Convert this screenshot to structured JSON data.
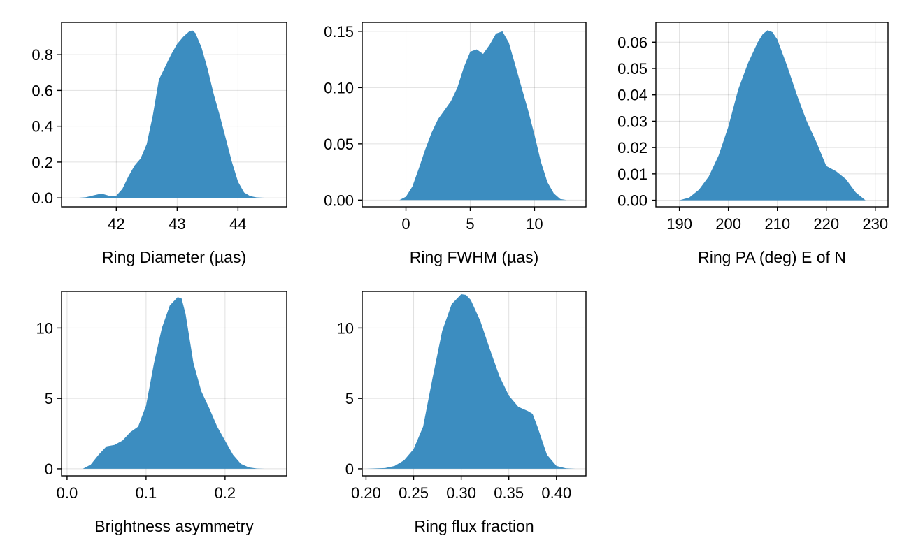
{
  "figure": {
    "fill_color": "#3C8DC0",
    "grid": true
  },
  "chart_data": [
    {
      "type": "area",
      "title": "",
      "xlabel": "Ring Diameter (µas)",
      "ylabel": "",
      "xlim": [
        41.1,
        44.8
      ],
      "ylim": [
        -0.05,
        0.98
      ],
      "xticks": [
        42,
        43,
        44
      ],
      "xtick_labels": [
        "42",
        "43",
        "44"
      ],
      "yticks": [
        0.0,
        0.2,
        0.4,
        0.6,
        0.8
      ],
      "ytick_labels": [
        "0.0",
        "0.2",
        "0.4",
        "0.6",
        "0.8"
      ],
      "x": [
        41.35,
        41.5,
        41.6,
        41.7,
        41.75,
        41.8,
        41.9,
        42.0,
        42.1,
        42.2,
        42.3,
        42.4,
        42.5,
        42.6,
        42.7,
        42.8,
        42.9,
        43.0,
        43.1,
        43.2,
        43.25,
        43.3,
        43.4,
        43.5,
        43.6,
        43.7,
        43.8,
        43.9,
        44.0,
        44.1,
        44.2,
        44.3,
        44.4,
        44.5
      ],
      "y": [
        0.0,
        0.004,
        0.012,
        0.02,
        0.022,
        0.02,
        0.01,
        0.012,
        0.05,
        0.12,
        0.18,
        0.22,
        0.3,
        0.46,
        0.66,
        0.73,
        0.8,
        0.86,
        0.9,
        0.93,
        0.935,
        0.92,
        0.84,
        0.72,
        0.58,
        0.46,
        0.33,
        0.2,
        0.09,
        0.03,
        0.01,
        0.003,
        0.001,
        0.0
      ]
    },
    {
      "type": "area",
      "title": "",
      "xlabel": "Ring FWHM (µas)",
      "ylabel": "",
      "xlim": [
        -3.4,
        14.0
      ],
      "ylim": [
        -0.006,
        0.158
      ],
      "xticks": [
        0,
        5,
        10
      ],
      "xtick_labels": [
        "0",
        "5",
        "10"
      ],
      "yticks": [
        0.0,
        0.05,
        0.1,
        0.15
      ],
      "ytick_labels": [
        "0.00",
        "0.05",
        "0.10",
        "0.15"
      ],
      "x": [
        -0.5,
        0.0,
        0.5,
        1.0,
        1.5,
        2.0,
        2.5,
        3.0,
        3.5,
        4.0,
        4.5,
        5.0,
        5.5,
        6.0,
        6.5,
        7.0,
        7.5,
        8.0,
        8.5,
        9.0,
        9.5,
        10.0,
        10.5,
        11.0,
        11.5,
        12.0,
        12.5
      ],
      "y": [
        0.0,
        0.003,
        0.012,
        0.028,
        0.045,
        0.06,
        0.072,
        0.08,
        0.088,
        0.1,
        0.118,
        0.132,
        0.134,
        0.13,
        0.138,
        0.148,
        0.15,
        0.14,
        0.12,
        0.1,
        0.08,
        0.058,
        0.034,
        0.016,
        0.006,
        0.001,
        0.0
      ]
    },
    {
      "type": "area",
      "title": "",
      "xlabel": "Ring PA (deg) E of N",
      "ylabel": "",
      "xlim": [
        185.2,
        232.6
      ],
      "ylim": [
        -0.0025,
        0.0675
      ],
      "xticks": [
        190,
        200,
        210,
        220,
        230
      ],
      "xtick_labels": [
        "190",
        "200",
        "210",
        "220",
        "230"
      ],
      "yticks": [
        0.0,
        0.01,
        0.02,
        0.03,
        0.04,
        0.05,
        0.06
      ],
      "ytick_labels": [
        "0.00",
        "0.01",
        "0.02",
        "0.03",
        "0.04",
        "0.05",
        "0.06"
      ],
      "x": [
        190,
        192,
        194,
        196,
        198,
        200,
        202,
        204,
        206,
        207,
        208,
        209,
        210,
        212,
        214,
        216,
        218,
        220,
        222,
        224,
        226,
        228
      ],
      "y": [
        0.0,
        0.001,
        0.004,
        0.009,
        0.017,
        0.028,
        0.042,
        0.052,
        0.06,
        0.063,
        0.0645,
        0.0638,
        0.061,
        0.051,
        0.04,
        0.03,
        0.022,
        0.013,
        0.011,
        0.008,
        0.003,
        0.0
      ]
    },
    {
      "type": "area",
      "title": "",
      "xlabel": "Brightness asymmetry",
      "ylabel": "",
      "xlim": [
        -0.007,
        0.278
      ],
      "ylim": [
        -0.5,
        12.6
      ],
      "xticks": [
        0.0,
        0.1,
        0.2
      ],
      "xtick_labels": [
        "0.0",
        "0.1",
        "0.2"
      ],
      "yticks": [
        0,
        5,
        10
      ],
      "ytick_labels": [
        "0",
        "5",
        "10"
      ],
      "x": [
        0.02,
        0.03,
        0.04,
        0.05,
        0.06,
        0.07,
        0.08,
        0.09,
        0.1,
        0.11,
        0.12,
        0.13,
        0.14,
        0.145,
        0.15,
        0.16,
        0.17,
        0.18,
        0.19,
        0.2,
        0.21,
        0.22,
        0.23,
        0.24,
        0.25
      ],
      "y": [
        0.0,
        0.3,
        1.0,
        1.6,
        1.7,
        2.0,
        2.6,
        3.0,
        4.5,
        7.5,
        10.0,
        11.6,
        12.2,
        12.1,
        11.0,
        7.5,
        5.5,
        4.3,
        3.0,
        2.0,
        1.0,
        0.35,
        0.1,
        0.02,
        0.0
      ]
    },
    {
      "type": "area",
      "title": "",
      "xlabel": "Ring flux fraction",
      "ylabel": "",
      "xlim": [
        0.196,
        0.431
      ],
      "ylim": [
        -0.5,
        12.6
      ],
      "xticks": [
        0.2,
        0.25,
        0.3,
        0.35,
        0.4
      ],
      "xtick_labels": [
        "0.20",
        "0.25",
        "0.30",
        "0.35",
        "0.40"
      ],
      "yticks": [
        0,
        5,
        10
      ],
      "ytick_labels": [
        "0",
        "5",
        "10"
      ],
      "x": [
        0.2,
        0.22,
        0.23,
        0.24,
        0.25,
        0.26,
        0.27,
        0.28,
        0.29,
        0.3,
        0.305,
        0.31,
        0.32,
        0.33,
        0.34,
        0.35,
        0.36,
        0.37,
        0.375,
        0.38,
        0.39,
        0.4,
        0.41,
        0.42
      ],
      "y": [
        0.0,
        0.05,
        0.2,
        0.6,
        1.4,
        3.0,
        6.5,
        9.8,
        11.7,
        12.4,
        12.35,
        12.0,
        10.5,
        8.5,
        6.6,
        5.2,
        4.4,
        4.1,
        3.9,
        3.0,
        1.0,
        0.2,
        0.03,
        0.0
      ]
    }
  ]
}
